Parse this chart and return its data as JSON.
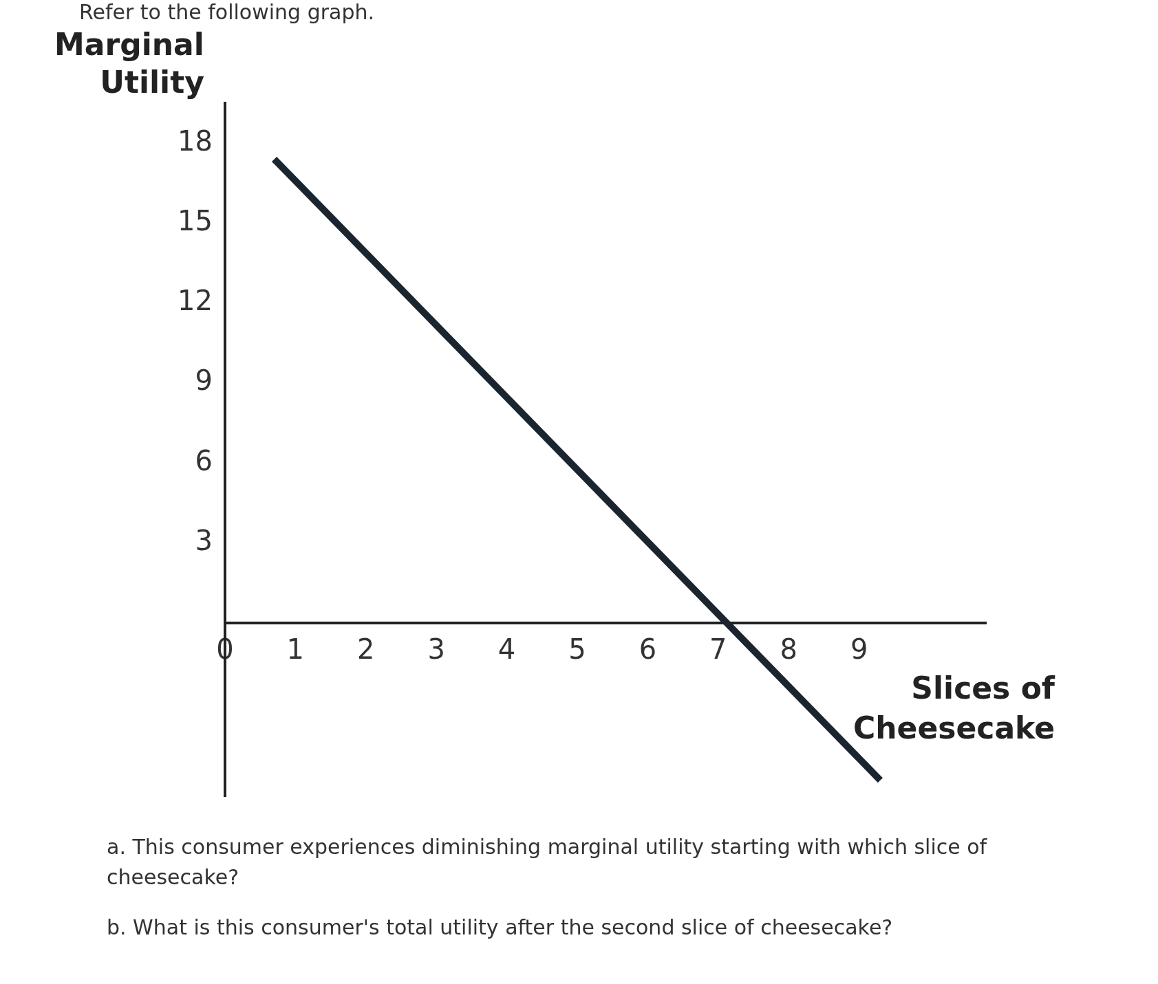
{
  "chart_data": {
    "type": "line",
    "title": "Refer to the following graph.",
    "xlabel": "Slices of Cheesecake",
    "ylabel": "Marginal Utility",
    "series": [
      {
        "color": "#1a2530",
        "x": [
          0.7,
          9.3
        ],
        "values": [
          17.4,
          -5.9
        ]
      }
    ],
    "xlim": [
      0,
      10.8
    ],
    "xticks": [
      0,
      1,
      2,
      3,
      4,
      5,
      6,
      7,
      8,
      9
    ],
    "ylim": [
      -6.5,
      19.5
    ],
    "yticks": [
      3,
      6,
      9,
      12,
      15,
      18
    ],
    "grid": false,
    "legend": false,
    "marker": "none",
    "annotations": [
      "a. This consumer experiences diminishing marginal utility starting with which slice of cheesecake?",
      "b. What is this consumer's total utility after the second slice of cheesecake?"
    ]
  }
}
